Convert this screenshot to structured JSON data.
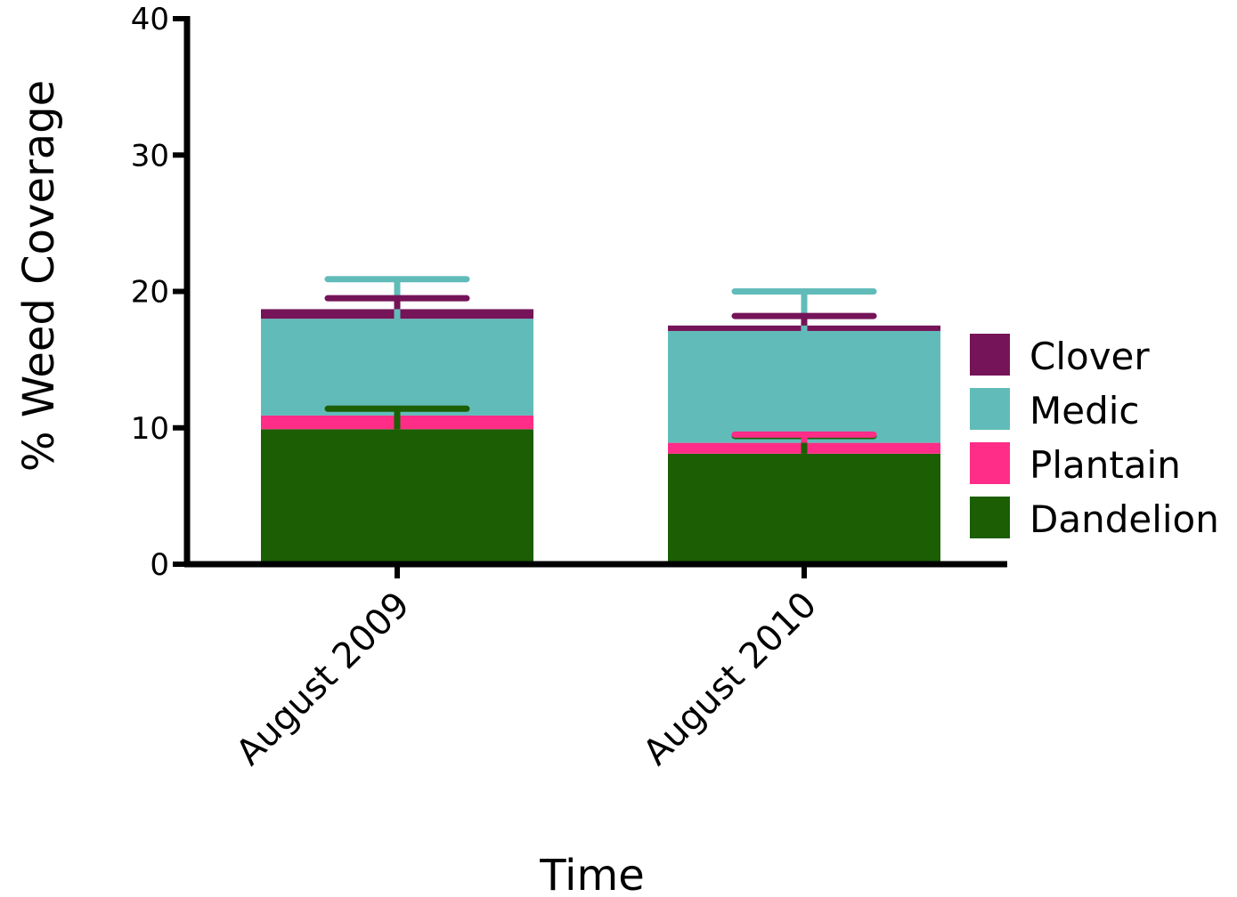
{
  "chart_data": {
    "type": "bar",
    "stacked": true,
    "title": "",
    "xlabel": "Time",
    "ylabel": "% Weed Coverage",
    "ylim": [
      0,
      40
    ],
    "yticks": [
      "0",
      "10",
      "20",
      "30",
      "40"
    ],
    "categories": [
      "August 2009",
      "August 2010"
    ],
    "series": [
      {
        "name": "Dandelion",
        "color": "#1b5e04",
        "values": [
          9.9,
          8.1
        ],
        "error": [
          1.5,
          1.3
        ]
      },
      {
        "name": "Plantain",
        "color": "#ff2d87",
        "values": [
          1.0,
          0.8
        ],
        "error": [
          0.0,
          0.6
        ]
      },
      {
        "name": "Medic",
        "color": "#61bcb9",
        "values": [
          7.1,
          8.2
        ],
        "error": [
          2.9,
          2.9
        ]
      },
      {
        "name": "Clover",
        "color": "#751458",
        "values": [
          0.7,
          0.4
        ],
        "error": [
          0.8,
          0.7
        ]
      }
    ],
    "legend_order": [
      "Clover",
      "Medic",
      "Plantain",
      "Dandelion"
    ],
    "legend_position": "right",
    "grid": false
  }
}
